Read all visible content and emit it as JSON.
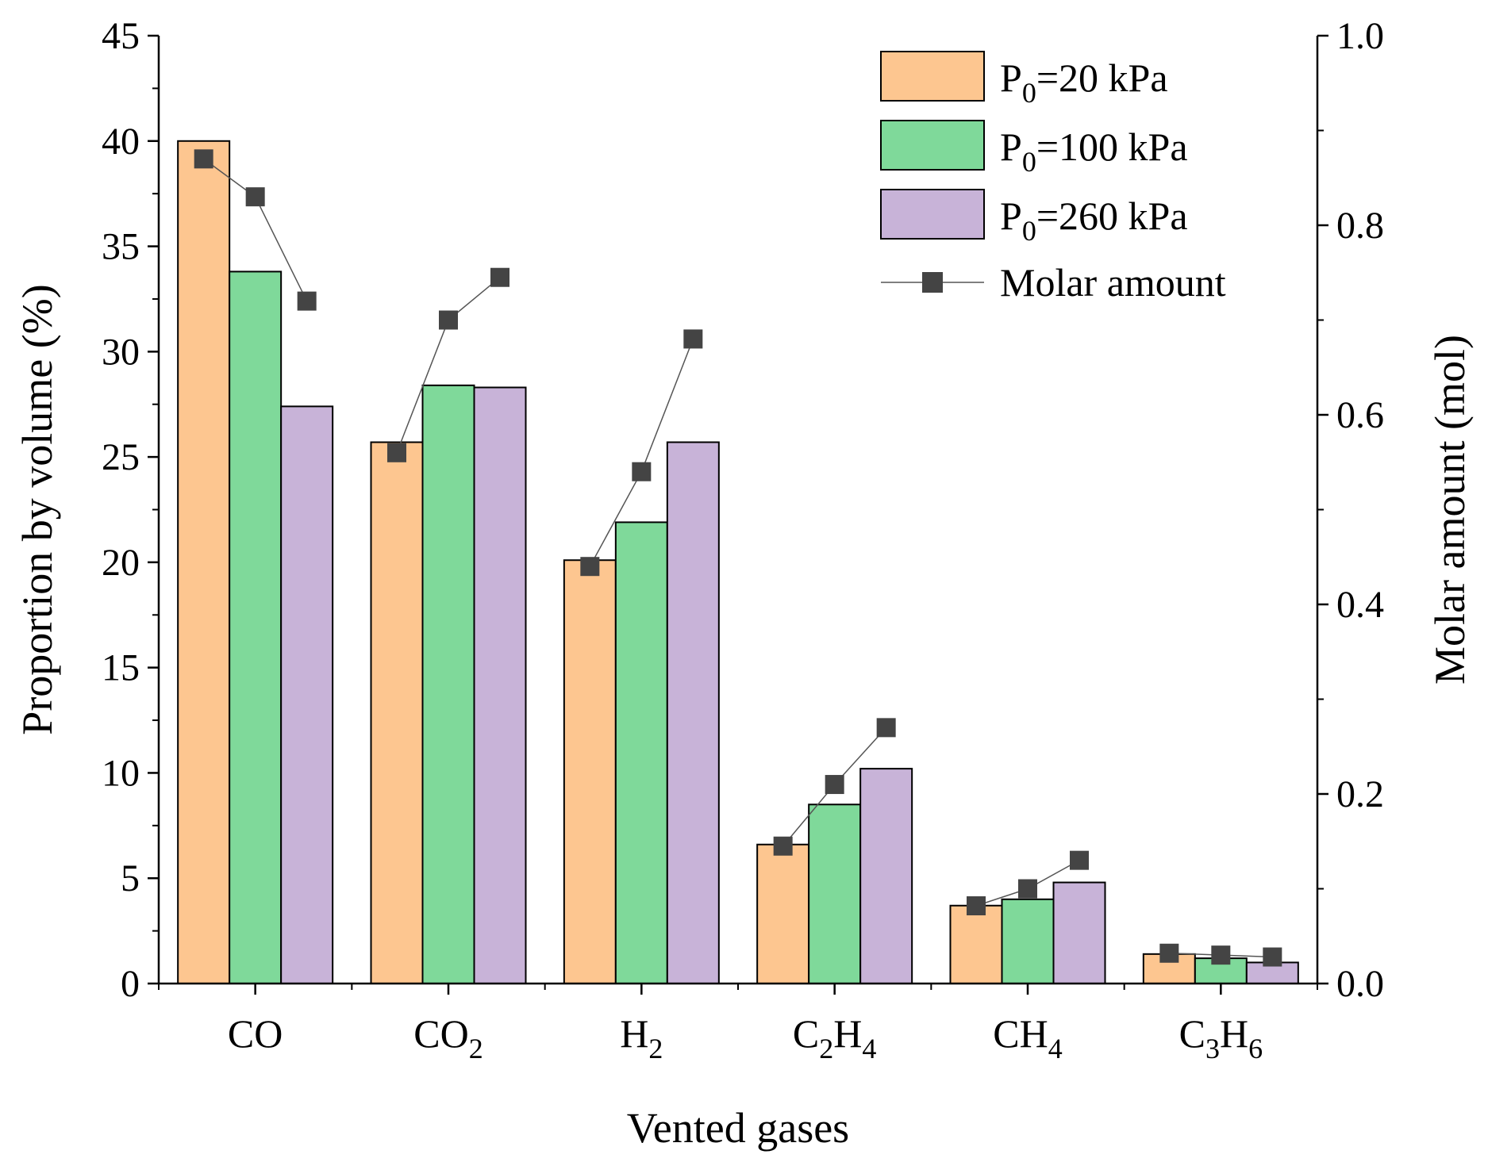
{
  "chart_data": {
    "type": "bar",
    "title": "",
    "xlabel": "Vented gases",
    "ylabel": "Proportion by volume (%)",
    "y2label": "Molar amount (mol)",
    "ylim": [
      0,
      45
    ],
    "y2lim": [
      0,
      1.0
    ],
    "yticks": [
      "0",
      "5",
      "10",
      "15",
      "20",
      "25",
      "30",
      "35",
      "40",
      "45"
    ],
    "y2ticks": [
      "0.0",
      "0.2",
      "0.4",
      "0.6",
      "0.8",
      "1.0"
    ],
    "categories": [
      {
        "base": "CO",
        "sub": ""
      },
      {
        "base": "CO",
        "sub": "2"
      },
      {
        "base": "H",
        "sub": "2"
      },
      {
        "base": "C",
        "sub": "2",
        "base2": "H",
        "sub2": "4"
      },
      {
        "base": "CH",
        "sub": "4"
      },
      {
        "base": "C",
        "sub": "3",
        "base2": "H",
        "sub2": "6"
      }
    ],
    "series": [
      {
        "name": "P",
        "name_sub": "0",
        "name_rest": "=20 kPa",
        "color": "#FDC690",
        "values": [
          40.0,
          25.7,
          20.1,
          6.6,
          3.7,
          1.4
        ],
        "molar": [
          0.87,
          0.56,
          0.44,
          0.145,
          0.082,
          0.032
        ]
      },
      {
        "name": "P",
        "name_sub": "0",
        "name_rest": "=100 kPa",
        "color": "#7FD99A",
        "values": [
          33.8,
          28.4,
          21.9,
          8.5,
          4.0,
          1.2
        ],
        "molar": [
          0.83,
          0.7,
          0.54,
          0.21,
          0.1,
          0.03
        ]
      },
      {
        "name": "P",
        "name_sub": "0",
        "name_rest": "=260 kPa",
        "color": "#C8B3D8",
        "values": [
          27.4,
          28.3,
          25.7,
          10.2,
          4.8,
          1.0
        ],
        "molar": [
          0.72,
          0.745,
          0.68,
          0.27,
          0.13,
          0.028
        ]
      }
    ],
    "line_series_name": "Molar amount",
    "marker_color": "#444444",
    "legend_position": "top-right"
  }
}
